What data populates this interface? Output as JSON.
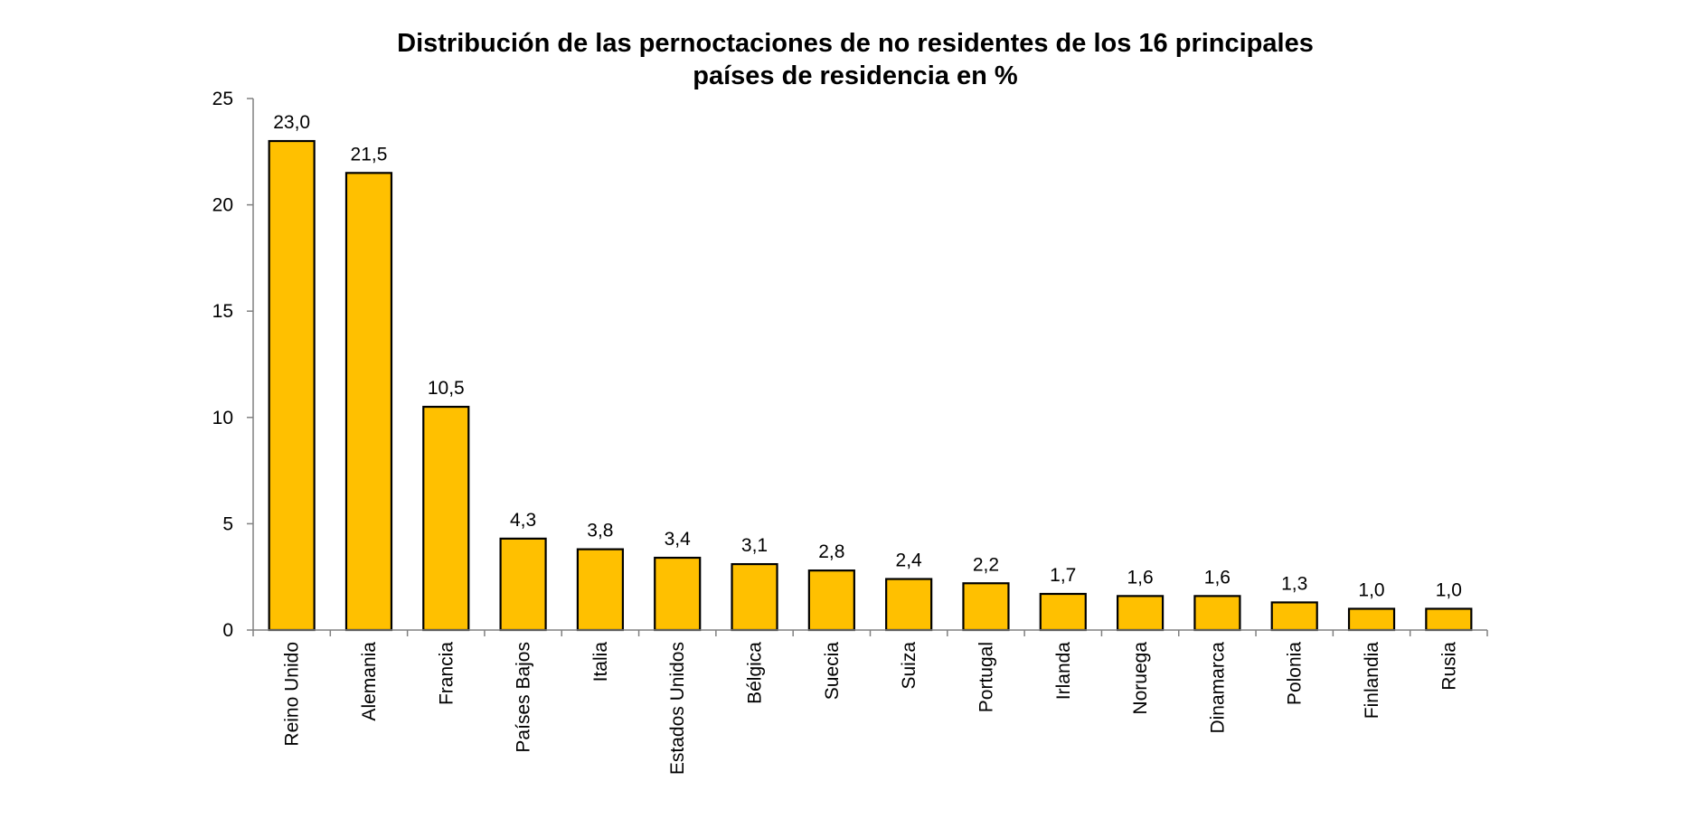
{
  "chart_data": {
    "type": "bar",
    "title_lines": [
      "Distribución de las pernoctaciones de no residentes de los 16 principales",
      "países de residencia en %"
    ],
    "categories": [
      "Reino Unido",
      "Alemania",
      "Francia",
      "Países Bajos",
      "Italia",
      "Estados Unidos",
      "Bélgica",
      "Suecia",
      "Suiza",
      "Portugal",
      "Irlanda",
      "Noruega",
      "Dinamarca",
      "Polonia",
      "Finlandia",
      "Rusia"
    ],
    "values": [
      23.0,
      21.5,
      10.5,
      4.3,
      3.8,
      3.4,
      3.1,
      2.8,
      2.4,
      2.2,
      1.7,
      1.6,
      1.6,
      1.3,
      1.0,
      1.0
    ],
    "data_labels": [
      "23,0",
      "21,5",
      "10,5",
      "4,3",
      "3,8",
      "3,4",
      "3,1",
      "2,8",
      "2,4",
      "2,2",
      "1,7",
      "1,6",
      "1,6",
      "1,3",
      "1,0",
      "1,0"
    ],
    "yticks": [
      0,
      5,
      10,
      15,
      20,
      25
    ],
    "ylim": [
      0,
      25
    ],
    "xlabel": "",
    "ylabel": "",
    "grid": false,
    "legend": "none",
    "bar_color": "#FFC000",
    "bar_edge_color": "#000000"
  }
}
